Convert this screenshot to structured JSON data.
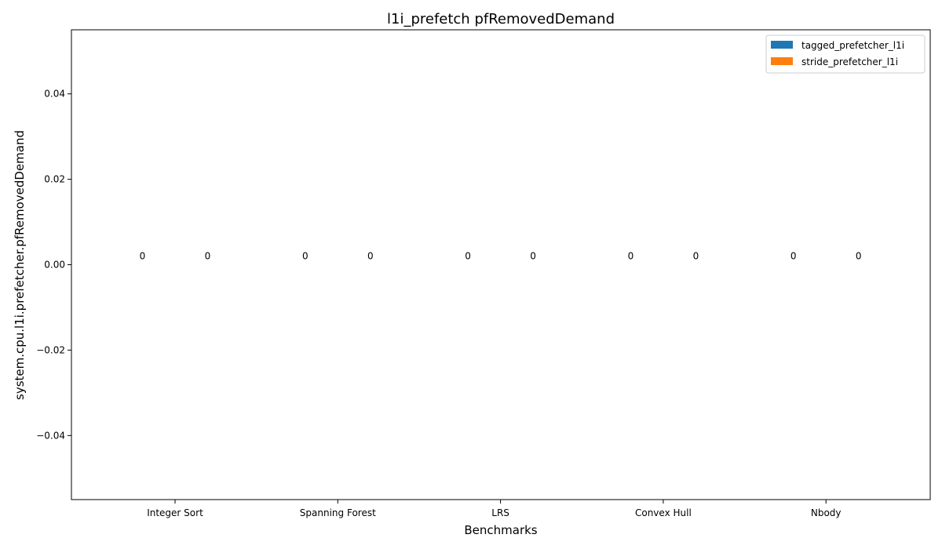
{
  "chart_data": {
    "type": "bar",
    "title": "l1i_prefetch pfRemovedDemand",
    "xlabel": "Benchmarks",
    "ylabel": "system.cpu.l1i.prefetcher.pfRemovedDemand",
    "categories": [
      "Integer Sort",
      "Spanning Forest",
      "LRS",
      "Convex Hull",
      "Nbody"
    ],
    "series": [
      {
        "name": "tagged_prefetcher_l1i",
        "color": "#1f77b4",
        "values": [
          0,
          0,
          0,
          0,
          0
        ]
      },
      {
        "name": "stride_prefetcher_l1i",
        "color": "#ff7f0e",
        "values": [
          0,
          0,
          0,
          0,
          0
        ]
      }
    ],
    "ylim": [
      -0.055,
      0.055
    ],
    "yticks": [
      -0.04,
      -0.02,
      0.0,
      0.02,
      0.04
    ],
    "ytick_labels": [
      "−0.04",
      "−0.02",
      "0.00",
      "0.02",
      "0.04"
    ],
    "grid": false,
    "legend": "top-right"
  }
}
